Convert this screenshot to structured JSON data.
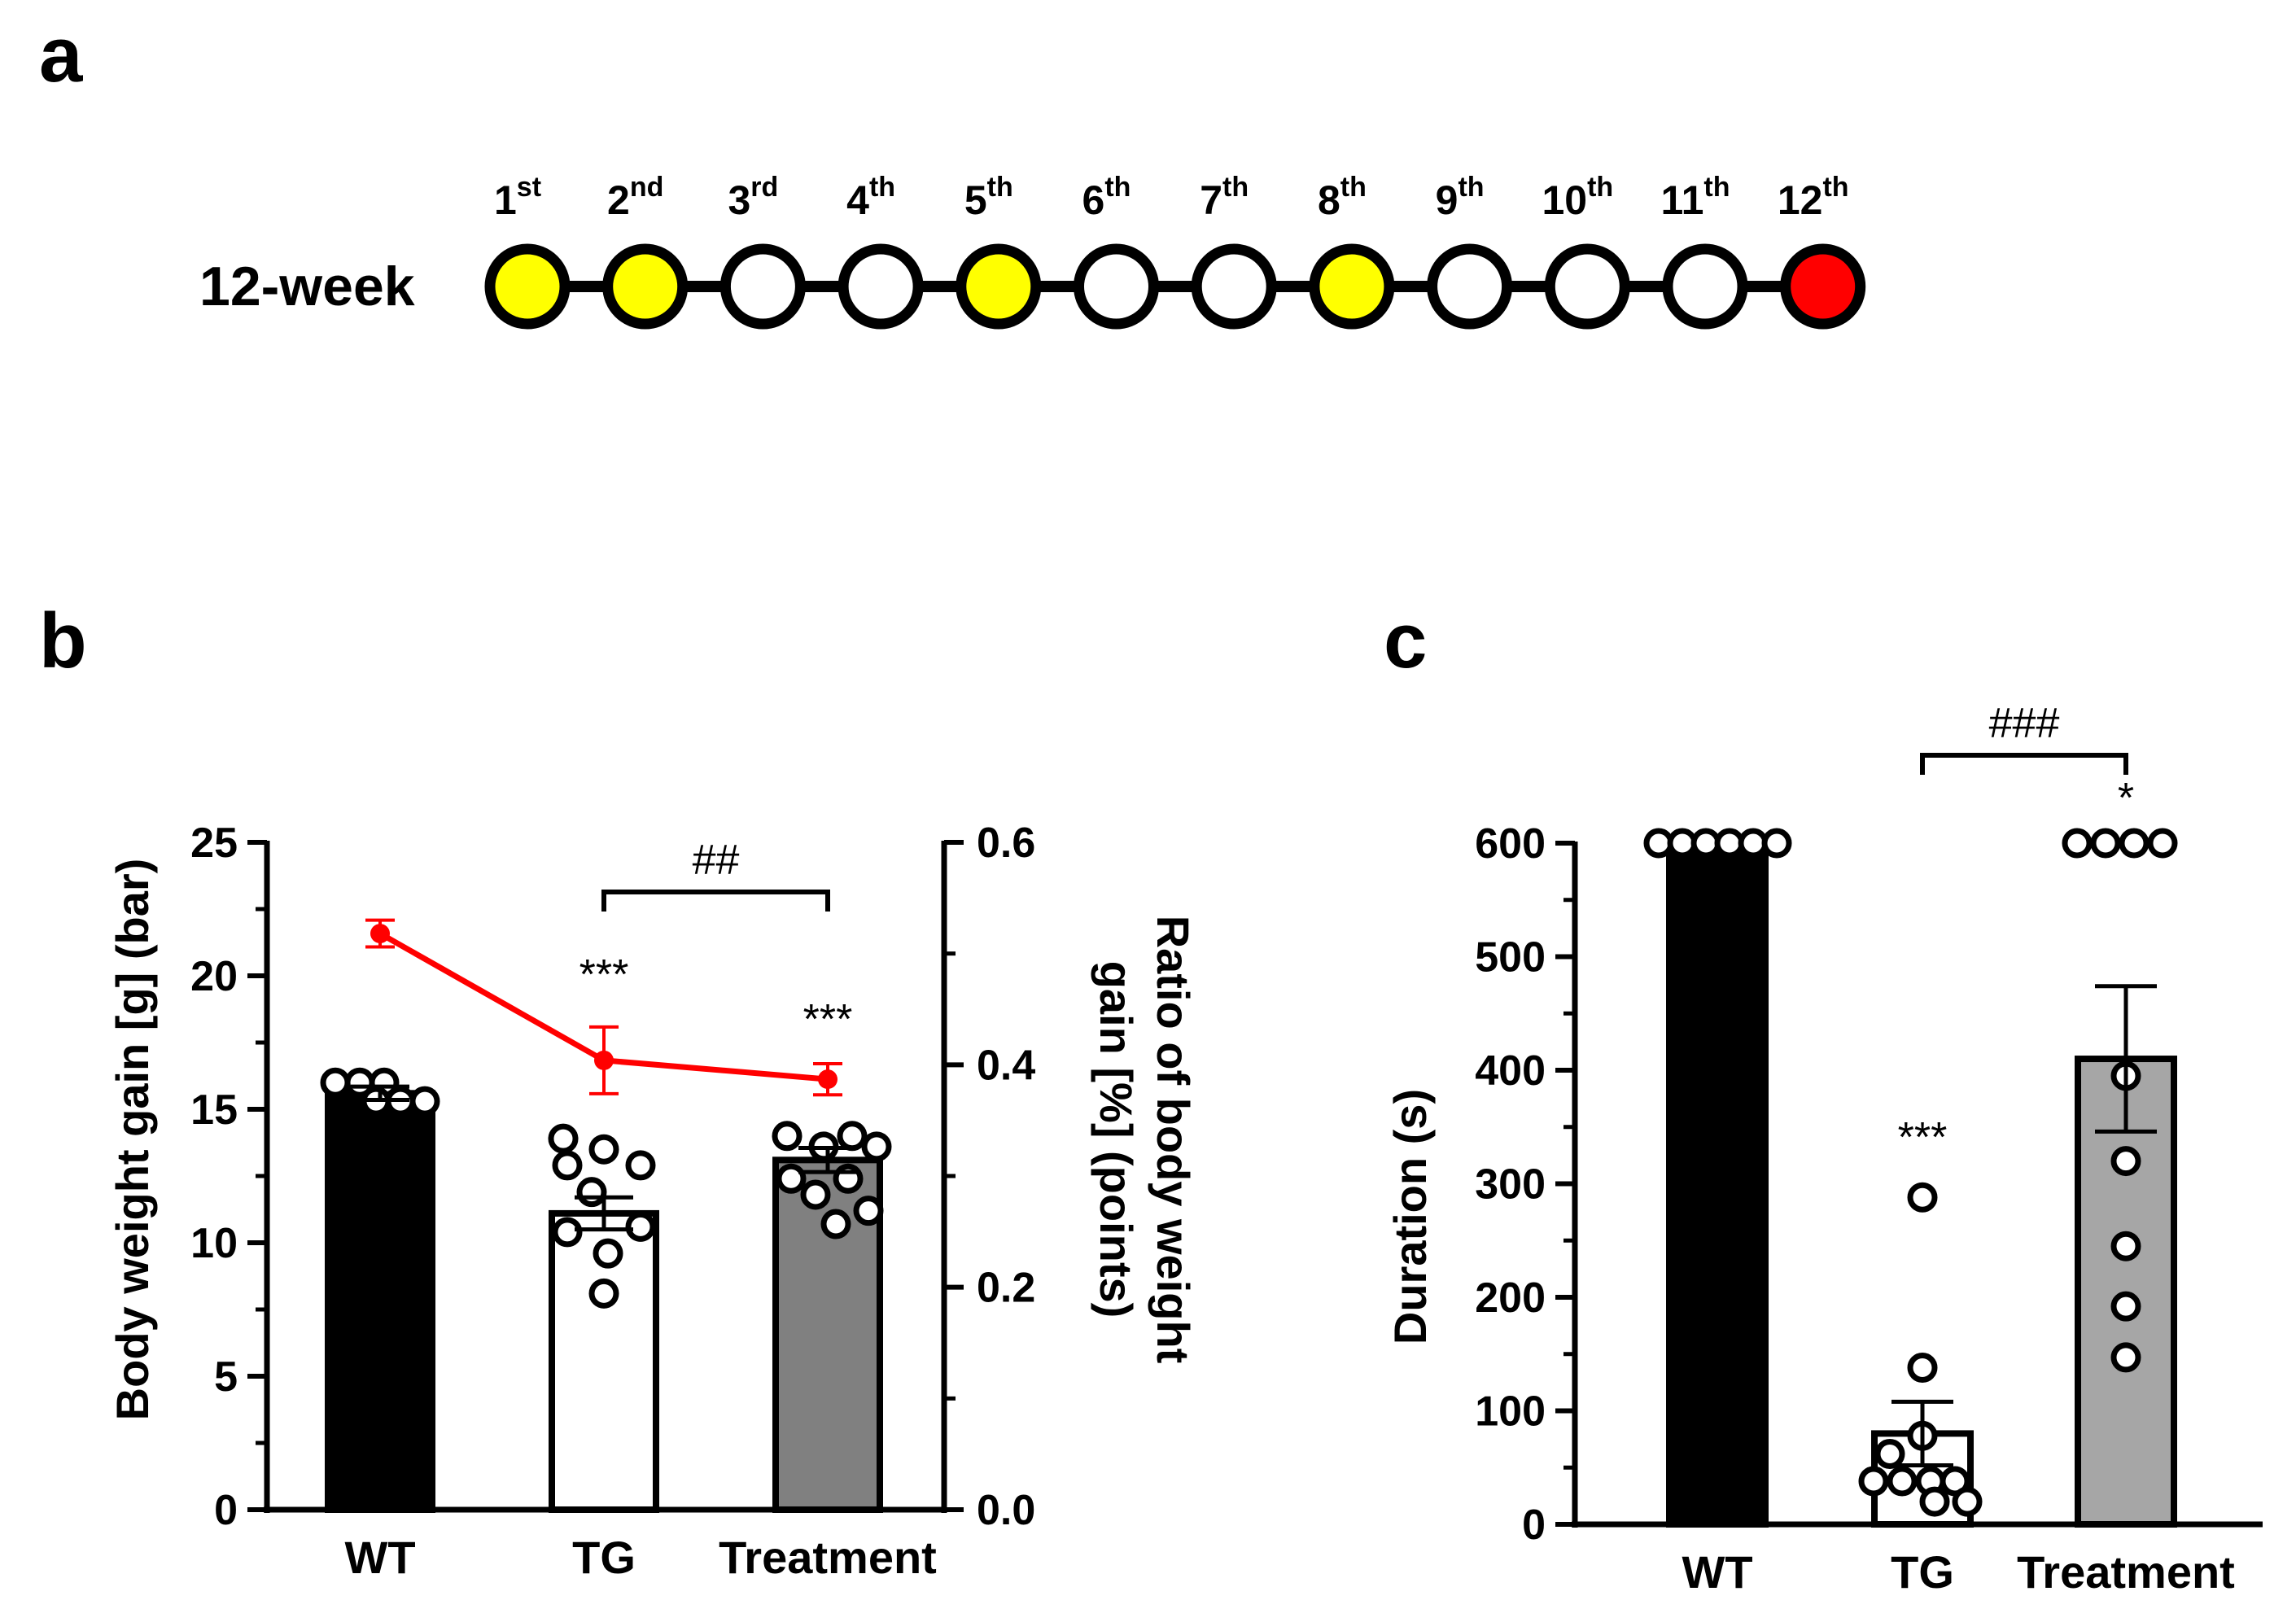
{
  "panels": {
    "a": "a",
    "b": "b",
    "c": "c"
  },
  "timeline": {
    "row_label": "12-week",
    "weeks": [
      {
        "num": "1",
        "sup": "st",
        "state": "yellow"
      },
      {
        "num": "2",
        "sup": "nd",
        "state": "yellow"
      },
      {
        "num": "3",
        "sup": "rd",
        "state": "white"
      },
      {
        "num": "4",
        "sup": "th",
        "state": "white"
      },
      {
        "num": "5",
        "sup": "th",
        "state": "yellow"
      },
      {
        "num": "6",
        "sup": "th",
        "state": "white"
      },
      {
        "num": "7",
        "sup": "th",
        "state": "white"
      },
      {
        "num": "8",
        "sup": "th",
        "state": "yellow"
      },
      {
        "num": "9",
        "sup": "th",
        "state": "white"
      },
      {
        "num": "10",
        "sup": "th",
        "state": "white"
      },
      {
        "num": "11",
        "sup": "th",
        "state": "white"
      },
      {
        "num": "12",
        "sup": "th",
        "state": "red"
      }
    ],
    "colors": {
      "yellow": "#ffff00",
      "white": "#ffffff",
      "red": "#ff0000"
    }
  },
  "chart_data": [
    {
      "type": "bar",
      "panel": "b",
      "categories": [
        "WT",
        "TG",
        "Treatment"
      ],
      "values": [
        15.6,
        11.1,
        13.1
      ],
      "errors": [
        0.25,
        0.6,
        0.45
      ],
      "bar_colors": [
        "#000000",
        "#ffffff",
        "#808080"
      ],
      "ylabel": "Body weight gain [g] (bar)",
      "ylim": [
        0,
        25
      ],
      "yticks": [
        0,
        5,
        10,
        15,
        20,
        25
      ],
      "y2label_line1": "Ratio of body weight",
      "y2label_line2": "gain [%] (points)",
      "y2lim": [
        0,
        0.6
      ],
      "y2ticks": [
        "0.0",
        "0.2",
        "0.4",
        "0.6"
      ],
      "points": [
        [
          16.0,
          16.0,
          16.0,
          15.3,
          15.3,
          15.3
        ],
        [
          13.9,
          13.5,
          12.9,
          12.9,
          11.9,
          10.6,
          10.4,
          9.6,
          8.1
        ],
        [
          14.0,
          14.0,
          13.6,
          13.6,
          12.4,
          12.4,
          11.8,
          11.2,
          10.7
        ]
      ],
      "line_series": {
        "name": "Ratio",
        "values": [
          0.518,
          0.404,
          0.387
        ],
        "errors": [
          0.012,
          0.03,
          0.014
        ],
        "color": "#ff0000"
      },
      "annotations": {
        "tg_sig": "***",
        "treatment_sig": "***",
        "bracket_label": "##"
      }
    },
    {
      "type": "bar",
      "panel": "c",
      "categories": [
        "WT",
        "TG",
        "Treatment"
      ],
      "values": [
        600,
        80,
        410
      ],
      "errors": [
        0,
        28,
        64
      ],
      "bar_colors": [
        "#000000",
        "#ffffff",
        "#a6a6a6"
      ],
      "ylabel": "Duration (s)",
      "ylim": [
        0,
        600
      ],
      "yticks": [
        0,
        100,
        200,
        300,
        400,
        500,
        600
      ],
      "points": [
        [
          600,
          600,
          600,
          600,
          600,
          600
        ],
        [
          288,
          138,
          78,
          62,
          38,
          38,
          38,
          38,
          20,
          20
        ],
        [
          600,
          600,
          600,
          600,
          395,
          320,
          245,
          192,
          147
        ]
      ],
      "annotations": {
        "tg_sig": "***",
        "treatment_sig": "*",
        "bracket_label": "###"
      }
    }
  ]
}
